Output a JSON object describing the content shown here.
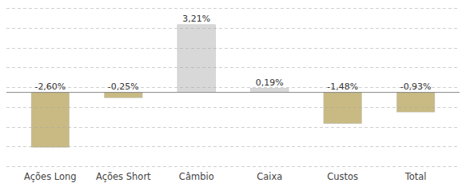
{
  "chart_data": {
    "type": "bar",
    "categories": [
      "Ações Long",
      "Ações Short",
      "Câmbio",
      "Caixa",
      "Custos",
      "Total"
    ],
    "values": [
      -2.6,
      -0.25,
      3.21,
      0.19,
      -1.48,
      -0.93
    ],
    "value_labels": [
      "-2,60%",
      "-0,25%",
      "3,21%",
      "0,19%",
      "-1,48%",
      "-0,93%"
    ],
    "colors": [
      "#C8BA82",
      "#C8BA82",
      "#D8D8D8",
      "#D8D8D8",
      "#C8BA82",
      "#C8BA82"
    ],
    "ylim": [
      -3.5,
      4.0
    ],
    "yticks": [
      -3.5,
      -2.5625,
      -1.625,
      -0.6875,
      0.25,
      1.1875,
      2.125,
      3.0625,
      4.0
    ],
    "grid": true,
    "data_labels": true,
    "tick_labels": "x"
  }
}
